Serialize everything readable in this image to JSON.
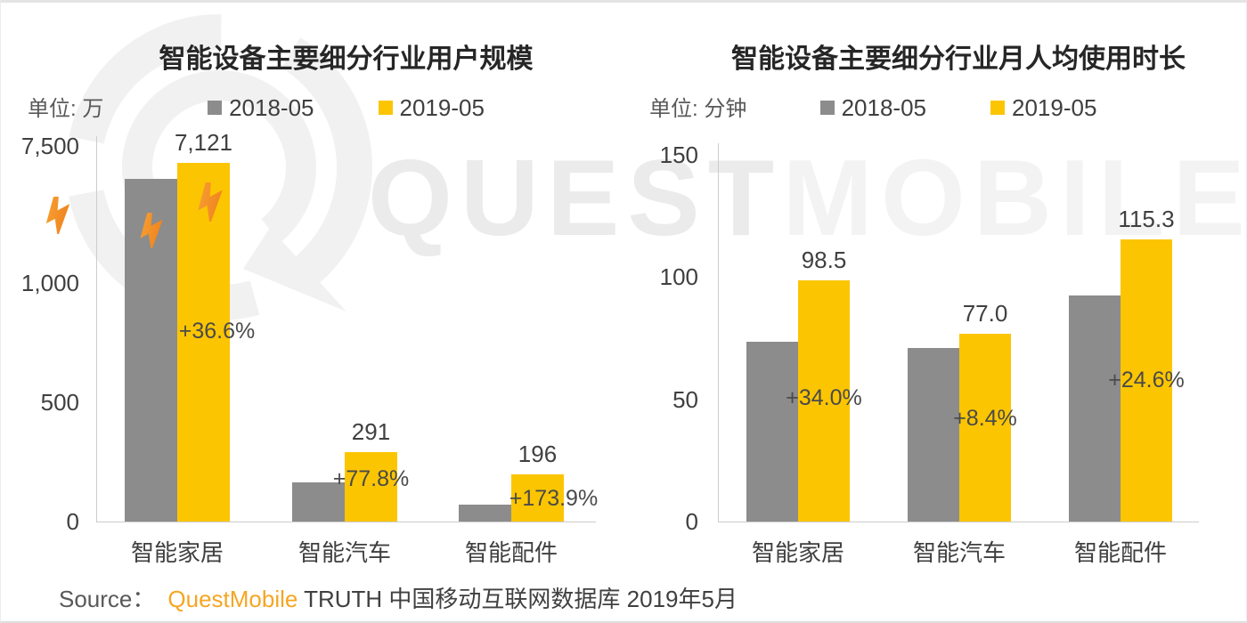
{
  "page": {
    "watermark": {
      "part1": "QUEST",
      "part2": "MOBILE"
    },
    "source": {
      "prefix": "Source：",
      "brand": "QuestMobile",
      "rest": " TRUTH 中国移动互联网数据库 2019年5月"
    }
  },
  "chart_data": [
    {
      "type": "bar",
      "title": "智能设备主要细分行业用户规模",
      "unit": "单位: 万",
      "categories": [
        "智能家居",
        "智能汽车",
        "智能配件"
      ],
      "series": [
        {
          "name": "2018-05",
          "color": "#8C8C8C",
          "estimated": true,
          "values": [
            5213,
            164,
            72
          ]
        },
        {
          "name": "2019-05",
          "color": "#FCC502",
          "estimated": false,
          "values": [
            7121,
            291,
            196
          ]
        }
      ],
      "value_labels": [
        "7,121",
        "291",
        "196"
      ],
      "growth_labels": [
        "+36.6%",
        "+77.8%",
        "+173.9%"
      ],
      "y_ticks": [
        {
          "label": "0",
          "value": 0
        },
        {
          "label": "500",
          "value": 500
        },
        {
          "label": "1,000",
          "value": 1000
        },
        {
          "label": "7,500",
          "value": 7500
        }
      ],
      "ylim": [
        0,
        7500
      ],
      "axis_break": true,
      "legend_position": "top",
      "grid": false
    },
    {
      "type": "bar",
      "title": "智能设备主要细分行业月人均使用时长",
      "unit": "单位: 分钟",
      "categories": [
        "智能家居",
        "智能汽车",
        "智能配件"
      ],
      "series": [
        {
          "name": "2018-05",
          "color": "#8C8C8C",
          "estimated": true,
          "values": [
            73.5,
            71.0,
            92.5
          ]
        },
        {
          "name": "2019-05",
          "color": "#FCC502",
          "estimated": false,
          "values": [
            98.5,
            77.0,
            115.3
          ]
        }
      ],
      "value_labels": [
        "98.5",
        "77.0",
        "115.3"
      ],
      "growth_labels": [
        "+34.0%",
        "+8.4%",
        "+24.6%"
      ],
      "y_ticks": [
        {
          "label": "0",
          "value": 0
        },
        {
          "label": "50",
          "value": 50
        },
        {
          "label": "100",
          "value": 100
        },
        {
          "label": "150",
          "value": 150
        }
      ],
      "ylim": [
        0,
        150
      ],
      "axis_break": false,
      "legend_position": "top",
      "grid": false
    }
  ]
}
